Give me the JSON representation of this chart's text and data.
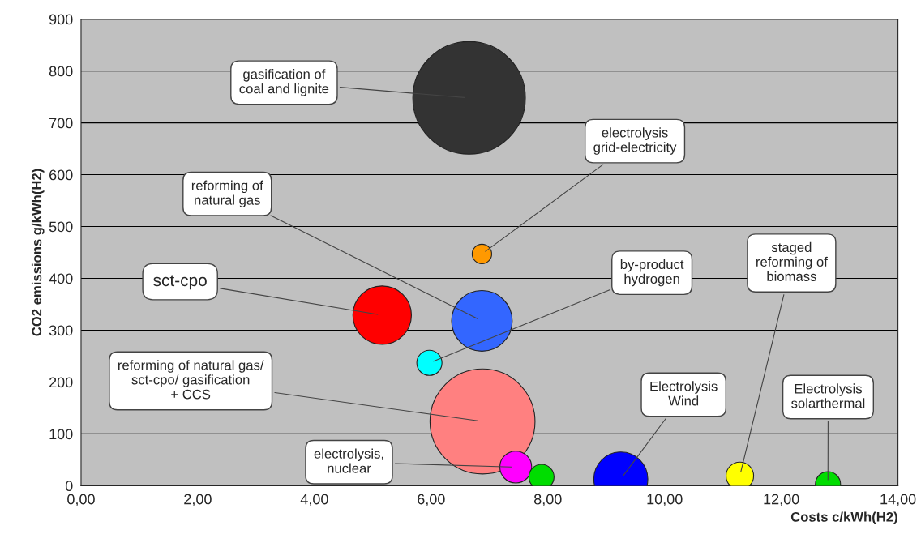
{
  "chart_data": {
    "type": "bubble",
    "xlabel": "Costs c/kWh(H2)",
    "ylabel": "CO2 emissions g/kWh(H2)",
    "x": [
      6.65,
      6.87,
      5.16,
      6.87,
      5.97,
      6.88,
      7.45,
      7.89,
      9.25,
      11.29,
      12.8
    ],
    "values": [
      748,
      447,
      329,
      318,
      237,
      124,
      36,
      17,
      13,
      19,
      3
    ],
    "sizes": [
      1,
      0.03,
      0.27,
      0.29,
      0.05,
      0.87,
      0.08,
      0.05,
      0.23,
      0.06,
      0.05
    ],
    "colors": [
      "#333333",
      "#ff9900",
      "#ff0000",
      "#3366ff",
      "#00ffff",
      "#ff8080",
      "#ff00ff",
      "#00dd00",
      "#0000ff",
      "#ffff00",
      "#00dd00"
    ],
    "xlim": [
      0,
      14
    ],
    "ylim": [
      0,
      900
    ],
    "xticks": [
      {
        "value": 0,
        "label": "0,00"
      },
      {
        "value": 2,
        "label": "2,00"
      },
      {
        "value": 4,
        "label": "4,00"
      },
      {
        "value": 6,
        "label": "6,00"
      },
      {
        "value": 8,
        "label": "8,00"
      },
      {
        "value": 10,
        "label": "10,00"
      },
      {
        "value": 12,
        "label": "12,00"
      },
      {
        "value": 14,
        "label": "14,00"
      }
    ],
    "yticks": [
      0,
      100,
      200,
      300,
      400,
      500,
      600,
      700,
      800,
      900
    ],
    "grid": "y",
    "legend": false,
    "annotations": [
      {
        "text": "gasification of\ncoal and lignite",
        "x": 6.65,
        "y": 748
      },
      {
        "text": "electrolysis\ngrid-electricity",
        "x": 6.87,
        "y": 447
      },
      {
        "text": "sct-cpo",
        "x": 5.16,
        "y": 329
      },
      {
        "text": "reforming of\nnatural gas",
        "x": 6.87,
        "y": 318
      },
      {
        "text": "by-product\nhydrogen",
        "x": 5.97,
        "y": 237
      },
      {
        "text": "reforming of natural gas/\nsct-cpo/ gasification\n+ CCS",
        "x": 6.88,
        "y": 124
      },
      {
        "text": "electrolysis,\nnuclear",
        "x": 7.45,
        "y": 36
      },
      {
        "text": "Electrolysis\nWind",
        "x": 9.25,
        "y": 13
      },
      {
        "text": "staged\nreforming of\nbiomass",
        "x": 11.29,
        "y": 19
      },
      {
        "text": "Electrolysis\nsolarthermal",
        "x": 12.8,
        "y": 3
      }
    ]
  }
}
